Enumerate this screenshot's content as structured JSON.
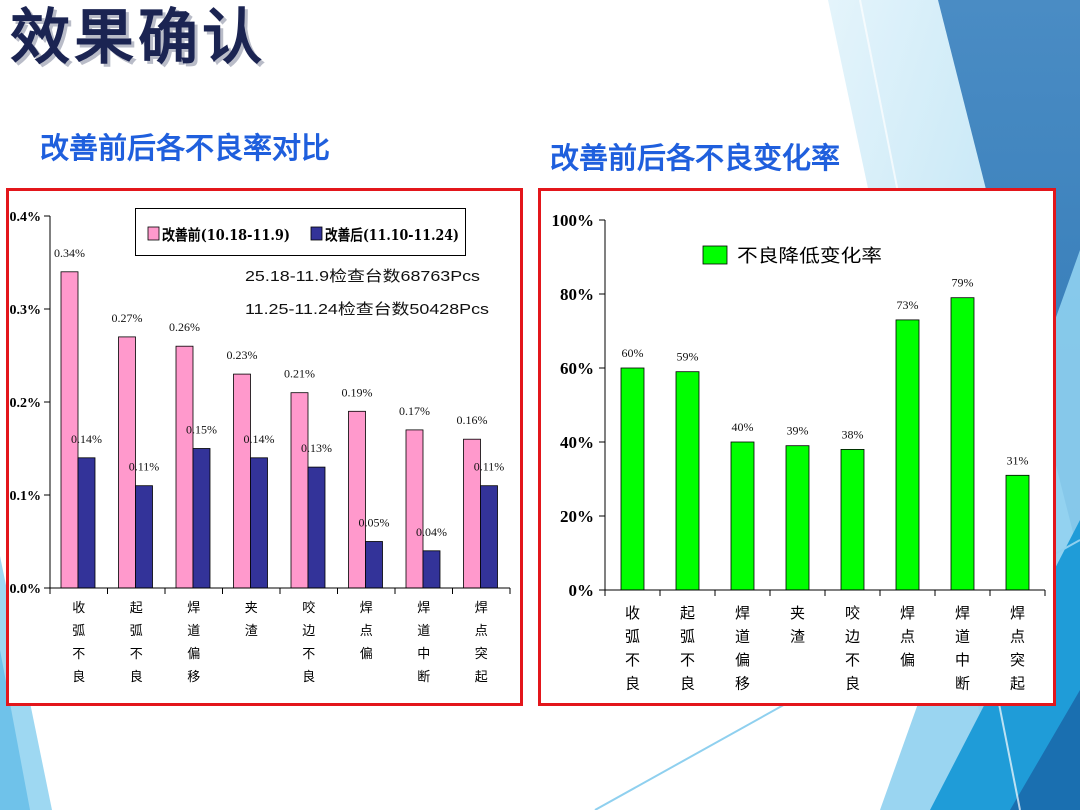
{
  "title": "效果确认",
  "colors": {
    "heading": "#1f5fdd",
    "frame": "#e3161b",
    "title": "#1b2452",
    "accent_blue": "#3f87c2"
  },
  "chart_data": [
    {
      "type": "bar",
      "title": "改善前后各不良率对比",
      "categories": [
        "收弧不良",
        "起弧不良",
        "焊道偏移",
        "夹渣",
        "咬边不良",
        "焊点偏",
        "焊道中断",
        "焊点突起"
      ],
      "series": [
        {
          "name": "改善前(10.18-11.9)",
          "values": [
            0.34,
            0.27,
            0.26,
            0.23,
            0.21,
            0.19,
            0.17,
            0.16
          ],
          "labels": [
            "0.34%",
            "0.27%",
            "0.26%",
            "0.23%",
            "0.21%",
            "0.19%",
            "0.17%",
            "0.16%"
          ],
          "color": "#ff99cc"
        },
        {
          "name": "改善后(11.10-11.24)",
          "values": [
            0.14,
            0.11,
            0.15,
            0.14,
            0.13,
            0.05,
            0.04,
            0.11
          ],
          "labels": [
            "0.14%",
            "0.11%",
            "0.15%",
            "0.14%",
            "0.13%",
            "0.05%",
            "0.04%",
            "0.11%"
          ],
          "color": "#333399"
        }
      ],
      "ylim": [
        0,
        0.4
      ],
      "yticks": [
        0,
        0.1,
        0.2,
        0.3,
        0.4
      ],
      "ytick_labels": [
        "0.0%",
        "0.1%",
        "0.2%",
        "0.3%",
        "0.4%"
      ],
      "legend": "top",
      "grid": false,
      "annotations": [
        "25.18-11.9检查台数68763Pcs",
        "11.25-11.24检查台数50428Pcs"
      ]
    },
    {
      "type": "bar",
      "title": "改善前后各不良变化率",
      "categories": [
        "收弧不良",
        "起弧不良",
        "焊道偏移",
        "夹渣",
        "咬边不良",
        "焊点偏",
        "焊道中断",
        "焊点突起"
      ],
      "series": [
        {
          "name": "不良降低变化率",
          "values": [
            60,
            59,
            40,
            39,
            38,
            73,
            79,
            31
          ],
          "labels": [
            "60%",
            "59%",
            "40%",
            "39%",
            "38%",
            "73%",
            "79%",
            "31%"
          ],
          "color": "#00ff00"
        }
      ],
      "ylim": [
        0,
        100
      ],
      "yticks": [
        0,
        20,
        40,
        60,
        80,
        100
      ],
      "ytick_labels": [
        "0%",
        "20%",
        "40%",
        "60%",
        "80%",
        "100%"
      ],
      "legend": "top-center",
      "grid": false
    }
  ]
}
